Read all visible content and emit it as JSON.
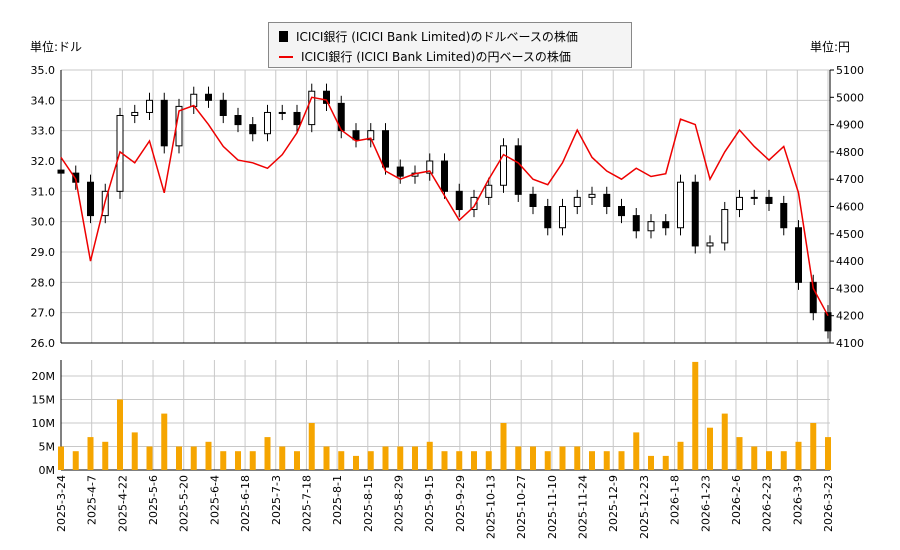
{
  "chart_data": {
    "type": "candlestick+line+bar",
    "legend": {
      "placement": "top-center",
      "entries": [
        "ICICI銀行 (ICICI Bank Limited)のドルベースの株価",
        "ICICI銀行 (ICICI Bank Limited)の円ベースの株価"
      ]
    },
    "left_unit": "単位:ドル",
    "right_unit": "単位:円",
    "left_axis": {
      "range": [
        26.0,
        35.0
      ],
      "ticks": [
        "26.0",
        "27.0",
        "28.0",
        "29.0",
        "30.0",
        "31.0",
        "32.0",
        "33.0",
        "34.0",
        "35.0"
      ]
    },
    "right_axis": {
      "range": [
        4100,
        5100
      ],
      "ticks": [
        "4100",
        "4200",
        "4300",
        "4400",
        "4500",
        "4600",
        "4700",
        "4800",
        "4900",
        "5000",
        "5100"
      ]
    },
    "volume_axis": {
      "range": [
        0,
        23
      ],
      "ticks": [
        "0M",
        "5M",
        "10M",
        "15M",
        "20M"
      ]
    },
    "x_ticks": [
      "2025-3-24",
      "2025-4-7",
      "2025-4-22",
      "2025-5-6",
      "2025-5-20",
      "2025-6-4",
      "2025-6-18",
      "2025-7-3",
      "2025-7-18",
      "2025-8-1",
      "2025-8-15",
      "2025-8-29",
      "2025-9-15",
      "2025-9-29",
      "2025-10-13",
      "2025-10-27",
      "2025-11-10",
      "2025-11-24",
      "2025-12-9",
      "2025-12-23",
      "2026-1-8",
      "2026-1-23",
      "2026-2-6",
      "2026-2-23",
      "2026-3-9",
      "2026-3-23"
    ],
    "grid": true,
    "colors": {
      "usd": "#000000",
      "jpy": "#ee0000",
      "volume": "#f5a500",
      "grid": "#c8c8c8"
    },
    "dates": [
      "2025-3-24",
      "2025-3-31",
      "2025-4-7",
      "2025-4-14",
      "2025-4-21",
      "2025-4-28",
      "2025-5-5",
      "2025-5-12",
      "2025-5-19",
      "2025-5-26",
      "2025-6-2",
      "2025-6-9",
      "2025-6-16",
      "2025-6-23",
      "2025-6-30",
      "2025-7-7",
      "2025-7-14",
      "2025-7-21",
      "2025-7-28",
      "2025-8-4",
      "2025-8-11",
      "2025-8-18",
      "2025-8-25",
      "2025-9-1",
      "2025-9-8",
      "2025-9-15",
      "2025-9-22",
      "2025-9-29",
      "2025-10-6",
      "2025-10-13",
      "2025-10-20",
      "2025-10-27",
      "2025-11-3",
      "2025-11-10",
      "2025-11-17",
      "2025-11-24",
      "2025-12-1",
      "2025-12-8",
      "2025-12-15",
      "2025-12-22",
      "2025-12-29",
      "2026-1-5",
      "2026-1-12",
      "2026-1-19",
      "2026-1-26",
      "2026-2-2",
      "2026-2-9",
      "2026-2-16",
      "2026-2-23",
      "2026-3-2",
      "2026-3-9",
      "2026-3-16",
      "2026-3-23"
    ],
    "usd_close": [
      31.6,
      31.3,
      30.2,
      31.0,
      33.5,
      33.6,
      34.0,
      32.5,
      33.8,
      34.2,
      34.0,
      33.5,
      33.2,
      32.9,
      33.6,
      33.6,
      33.2,
      34.3,
      33.9,
      33.0,
      32.7,
      33.0,
      31.8,
      31.5,
      31.6,
      32.0,
      31.0,
      30.4,
      30.8,
      31.2,
      32.5,
      30.9,
      30.5,
      29.8,
      30.5,
      30.8,
      30.9,
      30.5,
      30.2,
      29.7,
      30.0,
      29.8,
      31.3,
      29.2,
      29.3,
      30.4,
      30.8,
      30.8,
      30.6,
      29.8,
      28.0,
      27.0,
      26.4
    ],
    "jpy_close": [
      4780,
      4700,
      4400,
      4620,
      4800,
      4760,
      4840,
      4650,
      4950,
      4970,
      4900,
      4820,
      4770,
      4760,
      4740,
      4790,
      4870,
      5000,
      4990,
      4880,
      4840,
      4850,
      4730,
      4700,
      4720,
      4730,
      4640,
      4550,
      4600,
      4700,
      4790,
      4760,
      4700,
      4680,
      4760,
      4880,
      4780,
      4730,
      4700,
      4740,
      4710,
      4720,
      4920,
      4900,
      4700,
      4800,
      4880,
      4820,
      4770,
      4820,
      4650,
      4300,
      4200
    ],
    "volume_m": [
      5,
      4,
      7,
      6,
      15,
      8,
      5,
      12,
      5,
      5,
      6,
      4,
      4,
      4,
      7,
      5,
      4,
      10,
      5,
      4,
      3,
      4,
      5,
      5,
      5,
      6,
      4,
      4,
      4,
      4,
      10,
      5,
      5,
      4,
      5,
      5,
      4,
      4,
      4,
      8,
      3,
      3,
      6,
      23,
      9,
      12,
      7,
      5,
      4,
      4,
      6,
      10,
      7
    ]
  }
}
